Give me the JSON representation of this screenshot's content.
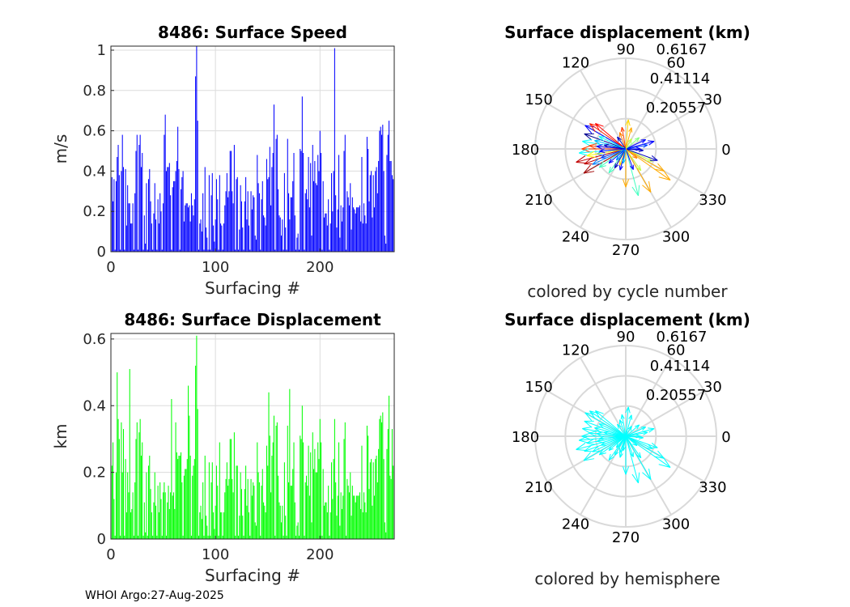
{
  "footer": "WHOI Argo:27-Aug-2025",
  "chart_data": [
    {
      "type": "bar",
      "title": "8486: Surface Speed",
      "xlabel": "Surfacing #",
      "ylabel": "m/s",
      "xlim": [
        0,
        271
      ],
      "ylim": [
        0,
        1.02
      ],
      "xticks": [
        "0",
        "100",
        "200"
      ],
      "xtick_values": [
        0,
        100,
        200
      ],
      "yticks": [
        "0",
        "0.2",
        "0.4",
        "0.6",
        "0.8",
        "1"
      ],
      "ytick_values": [
        0,
        0.2,
        0.4,
        0.6,
        0.8,
        1
      ],
      "grid": true,
      "color": "#0000ff",
      "values": [
        0.37,
        0.25,
        0.36,
        0.01,
        0.35,
        0.47,
        0.53,
        0.38,
        0.01,
        0.4,
        0.58,
        0.42,
        0.01,
        0.41,
        0.13,
        0.33,
        0.24,
        0.24,
        0.14,
        0.14,
        0.24,
        0.01,
        0.29,
        0.5,
        0.58,
        0.01,
        0.53,
        0.58,
        0.42,
        0.49,
        0.01,
        0.18,
        0.04,
        0.34,
        0.01,
        0.36,
        0.41,
        0.25,
        0.14,
        0.01,
        0.19,
        0.34,
        0.16,
        0.01,
        0.26,
        0.14,
        0.29,
        0.2,
        0.01,
        0.24,
        0.58,
        0.68,
        0.4,
        0.42,
        0.42,
        0.44,
        0.28,
        0.01,
        0.32,
        0.35,
        0.35,
        0.4,
        0.45,
        0.62,
        0.41,
        0.01,
        0.31,
        0.37,
        0.4,
        0.15,
        0.23,
        0.24,
        0.24,
        0.22,
        0.23,
        0.15,
        0.29,
        0.23,
        0.18,
        0.26,
        0.87,
        1.02,
        0.65,
        0.01,
        0.14,
        0.16,
        0.1,
        0.29,
        0.01,
        0.42,
        0.12,
        0.07,
        0.01,
        0.38,
        0.01,
        0.28,
        0.39,
        0.13,
        0.05,
        0.16,
        0.36,
        0.26,
        0.01,
        0.38,
        0.14,
        0.13,
        0.01,
        0.14,
        0.23,
        0.3,
        0.39,
        0.27,
        0.3,
        0.5,
        0.5,
        0.3,
        0.24,
        0.53,
        0.01,
        0.36,
        0.37,
        0.01,
        0.11,
        0.33,
        0.25,
        0.12,
        0.01,
        0.25,
        0.37,
        0.16,
        0.3,
        0.13,
        0.01,
        0.3,
        0.21,
        0.28,
        0.27,
        0.08,
        0.06,
        0.48,
        0.34,
        0.29,
        0.01,
        0.26,
        0.35,
        0.18,
        0.17,
        0.13,
        0.46,
        0.36,
        0.37,
        0.52,
        0.23,
        0.42,
        0.49,
        0.73,
        0.01,
        0.56,
        0.58,
        0.31,
        0.18,
        0.17,
        0.08,
        0.16,
        0.01,
        0.39,
        0.12,
        0.01,
        0.56,
        0.29,
        0.16,
        0.27,
        0.27,
        0.35,
        0.49,
        0.18,
        0.01,
        0.07,
        0.09,
        0.01,
        0.51,
        0.5,
        0.77,
        0.49,
        0.01,
        0.29,
        0.31,
        0.26,
        0.47,
        0.22,
        0.44,
        0.08,
        0.53,
        0.35,
        0.45,
        0.34,
        0.33,
        0.48,
        0.4,
        0.6,
        0.49,
        0.01,
        0.35,
        0.17,
        0.19,
        0.19,
        0.13,
        0.26,
        0.01,
        0.14,
        0.39,
        0.2,
        0.4,
        1.01,
        0.28,
        0.12,
        0.21,
        0.48,
        0.07,
        0.23,
        0.15,
        0.22,
        0.5,
        0.58,
        0.01,
        0.3,
        0.27,
        0.23,
        0.34,
        0.11,
        0.27,
        0.22,
        0.21,
        0.19,
        0.22,
        0.22,
        0.22,
        0.23,
        0.15,
        0.47,
        0.14,
        0.24,
        0.18,
        0.14,
        0.57,
        0.51,
        0.25,
        0.38,
        0.4,
        0.17,
        0.38,
        0.22,
        0.4,
        0.42,
        0.29,
        0.45,
        0.6,
        0.62,
        0.58,
        0.63,
        0.4,
        0.08,
        0.04,
        0.48,
        0.58,
        0.65,
        0.45,
        0.45,
        0.38,
        0.36
      ]
    },
    {
      "type": "bar",
      "title": "8486: Surface Displacement",
      "xlabel": "Surfacing #",
      "ylabel": "km",
      "xlim": [
        0,
        271
      ],
      "ylim": [
        0,
        0.6167
      ],
      "xticks": [
        "0",
        "100",
        "200"
      ],
      "xtick_values": [
        0,
        100,
        200
      ],
      "yticks": [
        "0",
        "0.2",
        "0.4",
        "0.6"
      ],
      "ytick_values": [
        0,
        0.2,
        0.4,
        0.6
      ],
      "grid": true,
      "color": "#00ff00",
      "values": [
        0.22,
        0.29,
        0.12,
        0.01,
        0.2,
        0.5,
        0.36,
        0.3,
        0.01,
        0.35,
        0.2,
        0.33,
        0.01,
        0.24,
        0.08,
        0.2,
        0.14,
        0.51,
        0.08,
        0.09,
        0.14,
        0.01,
        0.17,
        0.3,
        0.35,
        0.01,
        0.32,
        0.36,
        0.25,
        0.29,
        0.01,
        0.11,
        0.02,
        0.2,
        0.01,
        0.22,
        0.25,
        0.15,
        0.08,
        0.01,
        0.11,
        0.2,
        0.1,
        0.01,
        0.16,
        0.08,
        0.17,
        0.12,
        0.01,
        0.14,
        0.17,
        0.14,
        0.01,
        0.11,
        0.16,
        0.09,
        0.14,
        0.42,
        0.13,
        0.14,
        0.09,
        0.35,
        0.26,
        0.24,
        0.25,
        0.25,
        0.26,
        0.17,
        0.01,
        0.19,
        0.21,
        0.21,
        0.24,
        0.46,
        0.37,
        0.25,
        0.01,
        0.19,
        0.22,
        0.24,
        0.52,
        0.61,
        0.39,
        0.01,
        0.08,
        0.1,
        0.06,
        0.17,
        0.01,
        0.25,
        0.07,
        0.04,
        0.01,
        0.23,
        0.01,
        0.17,
        0.23,
        0.08,
        0.03,
        0.1,
        0.22,
        0.16,
        0.01,
        0.29,
        0.08,
        0.08,
        0.01,
        0.08,
        0.14,
        0.18,
        0.23,
        0.16,
        0.18,
        0.3,
        0.3,
        0.18,
        0.14,
        0.32,
        0.01,
        0.22,
        0.22,
        0.01,
        0.07,
        0.2,
        0.15,
        0.07,
        0.01,
        0.15,
        0.22,
        0.1,
        0.18,
        0.08,
        0.01,
        0.18,
        0.13,
        0.17,
        0.16,
        0.05,
        0.04,
        0.29,
        0.2,
        0.17,
        0.01,
        0.16,
        0.21,
        0.11,
        0.1,
        0.08,
        0.28,
        0.22,
        0.44,
        0.31,
        0.14,
        0.25,
        0.29,
        0.37,
        0.01,
        0.34,
        0.35,
        0.19,
        0.11,
        0.1,
        0.05,
        0.1,
        0.01,
        0.23,
        0.07,
        0.01,
        0.34,
        0.17,
        0.45,
        0.16,
        0.16,
        0.21,
        0.29,
        0.11,
        0.01,
        0.04,
        0.05,
        0.01,
        0.31,
        0.3,
        0.4,
        0.29,
        0.01,
        0.17,
        0.19,
        0.16,
        0.28,
        0.13,
        0.26,
        0.05,
        0.32,
        0.21,
        0.27,
        0.2,
        0.2,
        0.29,
        0.24,
        0.36,
        0.29,
        0.01,
        0.21,
        0.1,
        0.11,
        0.11,
        0.08,
        0.16,
        0.01,
        0.08,
        0.23,
        0.12,
        0.24,
        0.36,
        0.17,
        0.07,
        0.13,
        0.29,
        0.04,
        0.14,
        0.09,
        0.13,
        0.3,
        0.35,
        0.01,
        0.18,
        0.16,
        0.14,
        0.2,
        0.07,
        0.16,
        0.13,
        0.13,
        0.11,
        0.13,
        0.13,
        0.13,
        0.14,
        0.09,
        0.28,
        0.08,
        0.14,
        0.11,
        0.08,
        0.34,
        0.31,
        0.15,
        0.23,
        0.24,
        0.1,
        0.23,
        0.13,
        0.24,
        0.25,
        0.17,
        0.27,
        0.36,
        0.37,
        0.35,
        0.38,
        0.24,
        0.05,
        0.02,
        0.27,
        0.33,
        0.43,
        0.19,
        0.18,
        0.33,
        0.22
      ]
    },
    {
      "type": "polar-compass",
      "title": "Surface displacement (km)",
      "caption": "colored by cycle number",
      "rlim": [
        0,
        0.6167
      ],
      "rticks": [
        "0.20557",
        "0.41114",
        "0.6167"
      ],
      "rtick_values": [
        0.20557,
        0.41114,
        0.6167
      ],
      "angle_ticks": [
        "0",
        "30",
        "60",
        "90",
        "120",
        "150",
        "180",
        "210",
        "240",
        "270",
        "300",
        "330"
      ],
      "angle_tick_values": [
        0,
        30,
        60,
        90,
        120,
        150,
        180,
        210,
        240,
        270,
        300,
        330
      ],
      "vectors": [
        {
          "angle": 160,
          "r": 0.3,
          "color": "#00008f"
        },
        {
          "angle": 150,
          "r": 0.32,
          "color": "#0000ff"
        },
        {
          "angle": 140,
          "r": 0.27,
          "color": "#ff0000"
        },
        {
          "angle": 145,
          "r": 0.3,
          "color": "#ff2000"
        },
        {
          "angle": 170,
          "r": 0.3,
          "color": "#00ffff"
        },
        {
          "angle": 175,
          "r": 0.25,
          "color": "#ff4000"
        },
        {
          "angle": 180,
          "r": 0.3,
          "color": "#ff4000"
        },
        {
          "angle": 185,
          "r": 0.32,
          "color": "#00ffff"
        },
        {
          "angle": 195,
          "r": 0.35,
          "color": "#c00000"
        },
        {
          "angle": 200,
          "r": 0.3,
          "color": "#c00000"
        },
        {
          "angle": 210,
          "r": 0.33,
          "color": "#a00000"
        },
        {
          "angle": 215,
          "r": 0.22,
          "color": "#40ffc0"
        },
        {
          "angle": 235,
          "r": 0.2,
          "color": "#40ffc0"
        },
        {
          "angle": 270,
          "r": 0.26,
          "color": "#ffaa00"
        },
        {
          "angle": 285,
          "r": 0.33,
          "color": "#40ffc0"
        },
        {
          "angle": 300,
          "r": 0.34,
          "color": "#ffaa00"
        },
        {
          "angle": 325,
          "r": 0.37,
          "color": "#ffaa00"
        },
        {
          "angle": 330,
          "r": 0.3,
          "color": "#ffaa00"
        },
        {
          "angle": 335,
          "r": 0.2,
          "color": "#c0ff40"
        },
        {
          "angle": 340,
          "r": 0.23,
          "color": "#0000c0"
        },
        {
          "angle": 15,
          "r": 0.2,
          "color": "#0000ff"
        },
        {
          "angle": 10,
          "r": 0.15,
          "color": "#0040ff"
        },
        {
          "angle": 25,
          "r": 0.15,
          "color": "#0000ff"
        },
        {
          "angle": 40,
          "r": 0.12,
          "color": "#80ff80"
        },
        {
          "angle": 85,
          "r": 0.2,
          "color": "#ffd700"
        },
        {
          "angle": 75,
          "r": 0.15,
          "color": "#ffaa00"
        },
        {
          "angle": 100,
          "r": 0.15,
          "color": "#ff4000"
        },
        {
          "angle": 110,
          "r": 0.12,
          "color": "#ff8000"
        },
        {
          "angle": 125,
          "r": 0.1,
          "color": "#0000c0"
        },
        {
          "angle": 190,
          "r": 0.2,
          "color": "#0080ff"
        },
        {
          "angle": 200,
          "r": 0.18,
          "color": "#0040ff"
        },
        {
          "angle": 220,
          "r": 0.15,
          "color": "#0000ff"
        },
        {
          "angle": 240,
          "r": 0.15,
          "color": "#0000c0"
        },
        {
          "angle": 250,
          "r": 0.12,
          "color": "#ffd700"
        },
        {
          "angle": 255,
          "r": 0.15,
          "color": "#0000ff"
        },
        {
          "angle": 290,
          "r": 0.15,
          "color": "#0000ff"
        },
        {
          "angle": 305,
          "r": 0.18,
          "color": "#c0ff40"
        },
        {
          "angle": 165,
          "r": 0.22,
          "color": "#00c0ff"
        },
        {
          "angle": 155,
          "r": 0.2,
          "color": "#00ffff"
        },
        {
          "angle": 190,
          "r": 0.27,
          "color": "#ffff00"
        },
        {
          "angle": 205,
          "r": 0.25,
          "color": "#0080ff"
        },
        {
          "angle": 175,
          "r": 0.2,
          "color": "#0000ff"
        },
        {
          "angle": 230,
          "r": 0.1,
          "color": "#0080ff"
        },
        {
          "angle": 260,
          "r": 0.1,
          "color": "#00c0ff"
        },
        {
          "angle": 0,
          "r": 0.1,
          "color": "#0000ff"
        },
        {
          "angle": 355,
          "r": 0.12,
          "color": "#0000c0"
        },
        {
          "angle": 320,
          "r": 0.1,
          "color": "#ff8000"
        },
        {
          "angle": 60,
          "r": 0.08,
          "color": "#c0ff40"
        },
        {
          "angle": 170,
          "r": 0.15,
          "color": "#0000c0"
        },
        {
          "angle": 185,
          "r": 0.18,
          "color": "#0000ff"
        }
      ]
    },
    {
      "type": "polar-compass",
      "title": "Surface displacement (km)",
      "caption": "colored by hemisphere",
      "rlim": [
        0,
        0.6167
      ],
      "rticks": [
        "0.20557",
        "0.41114",
        "0.6167"
      ],
      "rtick_values": [
        0.20557,
        0.41114,
        0.6167
      ],
      "angle_ticks": [
        "0",
        "30",
        "60",
        "90",
        "120",
        "150",
        "180",
        "210",
        "240",
        "270",
        "300",
        "330"
      ],
      "angle_tick_values": [
        0,
        30,
        60,
        90,
        120,
        150,
        180,
        210,
        240,
        270,
        300,
        330
      ],
      "color": "#00ffff",
      "uses_vectors_of": 2
    }
  ]
}
